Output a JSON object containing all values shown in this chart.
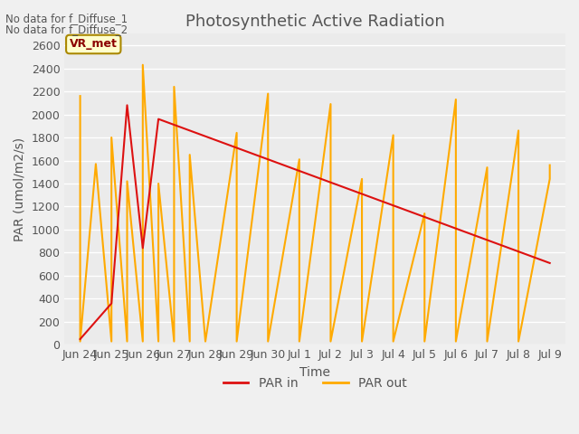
{
  "title": "Photosynthetic Active Radiation",
  "xlabel": "Time",
  "ylabel": "PAR (umol/m2/s)",
  "fig_facecolor": "#f0f0f0",
  "plot_facecolor": "#ebebeb",
  "annotations": [
    "No data for f_Diffuse_1",
    "No data for f_Diffuse_2"
  ],
  "legend_label_box": "VR_met",
  "par_in_color": "#dd1111",
  "par_out_color": "#ffaa00",
  "ylim": [
    0,
    2700
  ],
  "yticks": [
    0,
    200,
    400,
    600,
    800,
    1000,
    1200,
    1400,
    1600,
    1800,
    2000,
    2200,
    2400,
    2600
  ],
  "x_tick_labels": [
    "Jun 24",
    "Jun 25",
    "Jun 26",
    "Jun 27",
    "Jun 28",
    "Jun 29",
    "Jun 30",
    "Jul 1",
    "Jul 2",
    "Jul 3",
    "Jul 4",
    "Jul 5",
    "Jul 6",
    "Jul 7",
    "Jul 8",
    "Jul 9"
  ],
  "par_in_x": [
    0,
    1,
    1.5,
    2,
    2.5,
    15
  ],
  "par_in_y": [
    50,
    360,
    2080,
    840,
    1960,
    710
  ],
  "par_out_x": [
    0,
    0,
    0.5,
    1,
    1,
    1.5,
    1.5,
    2,
    2,
    2.5,
    2.5,
    3,
    3,
    3.5,
    3.5,
    4,
    4,
    5,
    5,
    6,
    6,
    7,
    7,
    8,
    8,
    9,
    9,
    10,
    10,
    11,
    11,
    12,
    12,
    13,
    13,
    14,
    14,
    15,
    15
  ],
  "par_out_y": [
    2160,
    30,
    1570,
    30,
    1800,
    30,
    1420,
    30,
    2430,
    30,
    1400,
    30,
    2240,
    30,
    1650,
    30,
    30,
    1840,
    30,
    2180,
    30,
    1610,
    30,
    2090,
    30,
    1440,
    30,
    1820,
    30,
    1140,
    30,
    2130,
    30,
    1540,
    30,
    1860,
    30,
    1440,
    1560
  ],
  "title_fontsize": 13,
  "label_fontsize": 10,
  "tick_fontsize": 9,
  "legend_par_in": "PAR in",
  "legend_par_out": "PAR out"
}
